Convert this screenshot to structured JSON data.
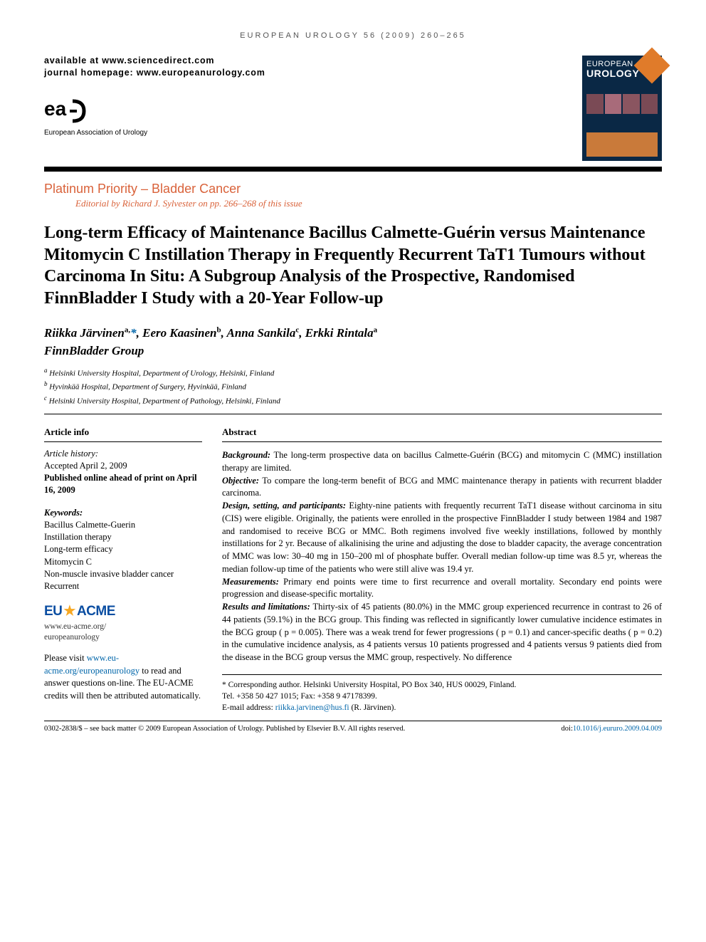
{
  "running_head": "EUROPEAN UROLOGY 56 (2009) 260–265",
  "availability": {
    "line1": "available at www.sciencedirect.com",
    "line2": "journal homepage: www.europeanurology.com"
  },
  "society": "European Association of Urology",
  "cover": {
    "top": "EUROPEAN",
    "main": "UROLOGY"
  },
  "section": {
    "label": "Platinum Priority – Bladder Cancer",
    "editorial": "Editorial by Richard J. Sylvester on pp. 266–268 of this issue"
  },
  "title": "Long-term Efficacy of Maintenance Bacillus Calmette-Guérin versus Maintenance Mitomycin C Instillation Therapy in Frequently Recurrent TaT1 Tumours without Carcinoma In Situ: A Subgroup Analysis of the Prospective, Randomised FinnBladder I Study with a 20-Year Follow-up",
  "authors_html": "Riikka Järvinen<sup>a,</sup><span class=\"ast\">*</span>, Eero Kaasinen<sup>b</sup>, Anna Sankila<sup>c</sup>, Erkki Rintala<sup>a</sup>",
  "group": "FinnBladder Group",
  "affiliations": [
    "Helsinki University Hospital, Department of Urology, Helsinki, Finland",
    "Hyvinkää Hospital, Department of Surgery, Hyvinkää, Finland",
    "Helsinki University Hospital, Department of Pathology, Helsinki, Finland"
  ],
  "article_info": {
    "heading": "Article info",
    "history_label": "Article history:",
    "accepted": "Accepted April 2, 2009",
    "published": "Published online ahead of print on April 16, 2009",
    "keywords_label": "Keywords:",
    "keywords": [
      "Bacillus Calmette-Guerin",
      "Instillation therapy",
      "Long-term efficacy",
      "Mitomycin C",
      "Non-muscle invasive bladder cancer",
      "Recurrent"
    ]
  },
  "acme": {
    "url1": "www.eu-acme.org/",
    "url2": "europeanurology",
    "note_pre": "Please visit ",
    "note_link": "www.eu-acme.org/europeanurology",
    "note_post": " to read and answer questions on-line. The EU-ACME credits will then be attributed automatically."
  },
  "abstract": {
    "heading": "Abstract",
    "background_label": "Background:",
    "background": " The long-term prospective data on bacillus Calmette-Guérin (BCG) and mitomycin C (MMC) instillation therapy are limited.",
    "objective_label": "Objective:",
    "objective": " To compare the long-term benefit of BCG and MMC maintenance therapy in patients with recurrent bladder carcinoma.",
    "design_label": "Design, setting, and participants:",
    "design": " Eighty-nine patients with frequently recurrent TaT1 disease without carcinoma in situ (CIS) were eligible. Originally, the patients were enrolled in the prospective FinnBladder I study between 1984 and 1987 and randomised to receive BCG or MMC. Both regimens involved five weekly instillations, followed by monthly instillations for 2 yr. Because of alkalinising the urine and adjusting the dose to bladder capacity, the average concentration of MMC was low: 30–40 mg in 150–200 ml of phosphate buffer. Overall median follow-up time was 8.5 yr, whereas the median follow-up time of the patients who were still alive was 19.4 yr.",
    "measurements_label": "Measurements:",
    "measurements": " Primary end points were time to first recurrence and overall mortality. Secondary end points were progression and disease-specific mortality.",
    "results_label": "Results and limitations:",
    "results": " Thirty-six of 45 patients (80.0%) in the MMC group experienced recurrence in contrast to 26 of 44 patients (59.1%) in the BCG group. This finding was reflected in significantly lower cumulative incidence estimates in the BCG group ( p = 0.005). There was a weak trend for fewer progressions ( p = 0.1) and cancer-specific deaths ( p = 0.2) in the cumulative incidence analysis, as 4 patients versus 10 patients progressed and 4 patients versus 9 patients died from the disease in the BCG group versus the MMC group, respectively. No difference"
  },
  "corresponding": {
    "line1": "* Corresponding author. Helsinki University Hospital, PO Box 340, HUS 00029, Finland.",
    "line2": "Tel. +358 50 427 1015; Fax: +358 9 47178399.",
    "email_label": "E-mail address: ",
    "email": "riikka.jarvinen@hus.fi",
    "email_suffix": " (R. Järvinen)."
  },
  "footer": {
    "left": "0302-2838/$ – see back matter © 2009 European Association of Urology. Published by Elsevier B.V. All rights reserved.",
    "doi_label": "doi:",
    "doi": "10.1016/j.eururo.2009.04.009"
  },
  "colors": {
    "accent_orange": "#d9623a",
    "link_blue": "#0066aa",
    "acme_blue": "#0b4ea2",
    "acme_gold": "#f7a823",
    "cover_bg": "#0a2845"
  }
}
